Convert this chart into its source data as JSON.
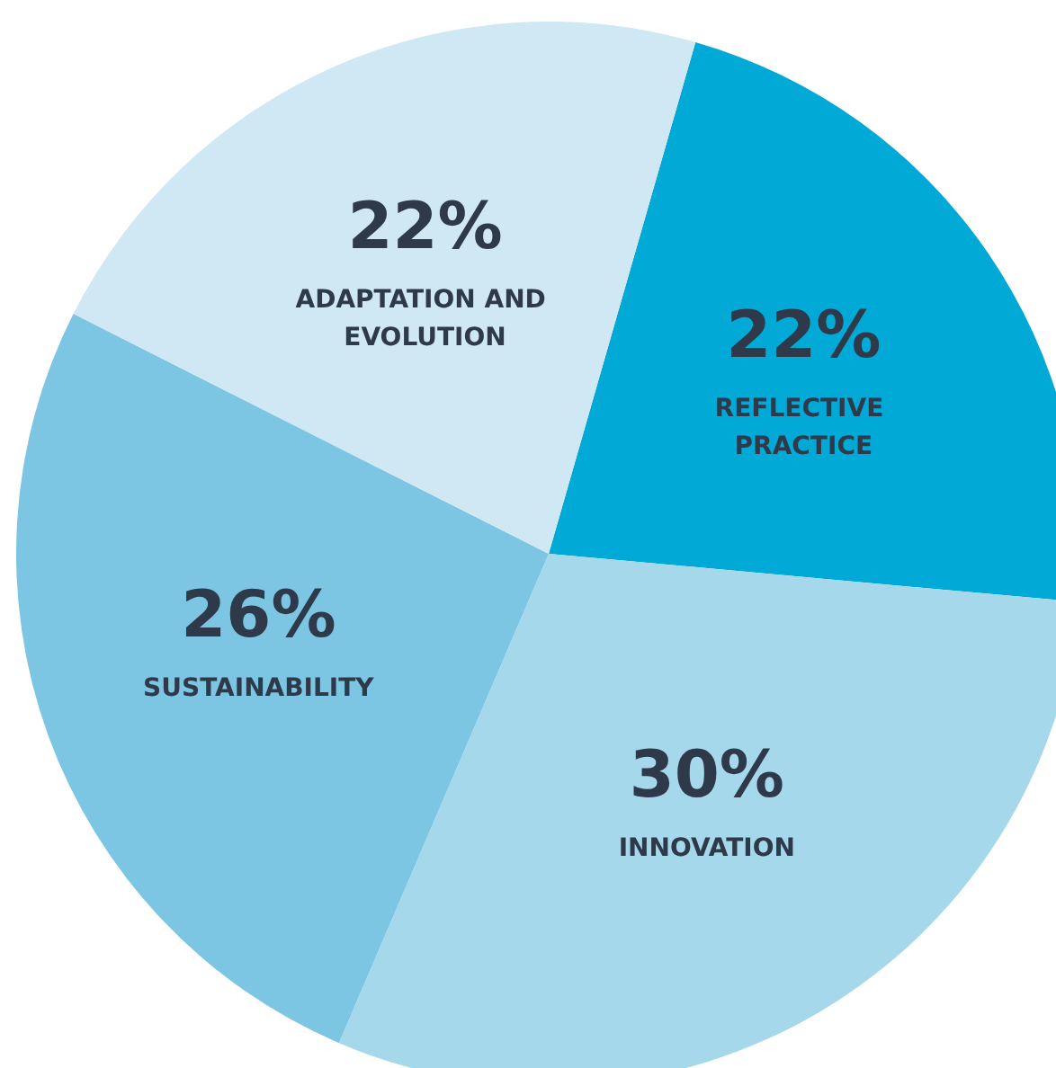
{
  "chart_data": {
    "type": "pie",
    "categories": [
      "REFLECTIVE PRACTICE",
      "INNOVATION",
      "SUSTAINABILITY",
      "ADAPTATION AND EVOLUTION"
    ],
    "values": [
      22,
      30,
      26,
      22
    ],
    "value_labels": [
      "22%",
      "30%",
      "26%",
      "22%"
    ],
    "colors": [
      "#00a9d6",
      "#a6d8ec",
      "#7cc6e4",
      "#cfe8f4"
    ],
    "legend": false
  }
}
